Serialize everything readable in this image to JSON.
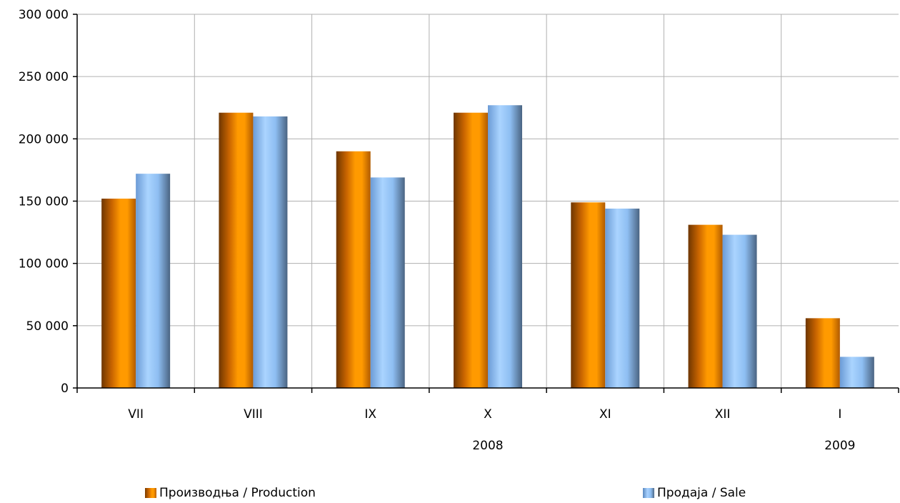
{
  "chart_data": {
    "type": "bar",
    "categories": [
      "VII",
      "VIII",
      "IX",
      "X",
      "XI",
      "XII",
      "I"
    ],
    "year_labels": [
      {
        "text": "2008",
        "category": "X"
      },
      {
        "text": "2009",
        "category": "I"
      }
    ],
    "series": [
      {
        "name": "Производња / Production",
        "values": [
          152000,
          221000,
          190000,
          221000,
          149000,
          131000,
          56000
        ],
        "color": "#ff9a00"
      },
      {
        "name": "Продаја / Sale",
        "values": [
          172000,
          218000,
          169000,
          227000,
          144000,
          123000,
          25000
        ],
        "color": "#99ccff"
      }
    ],
    "yticks": [
      "0",
      "50 000",
      "100 000",
      "150 000",
      "200 000",
      "250 000",
      "300 000"
    ],
    "ylim": [
      0,
      300000
    ],
    "grid": true,
    "legend_position": "bottom"
  }
}
